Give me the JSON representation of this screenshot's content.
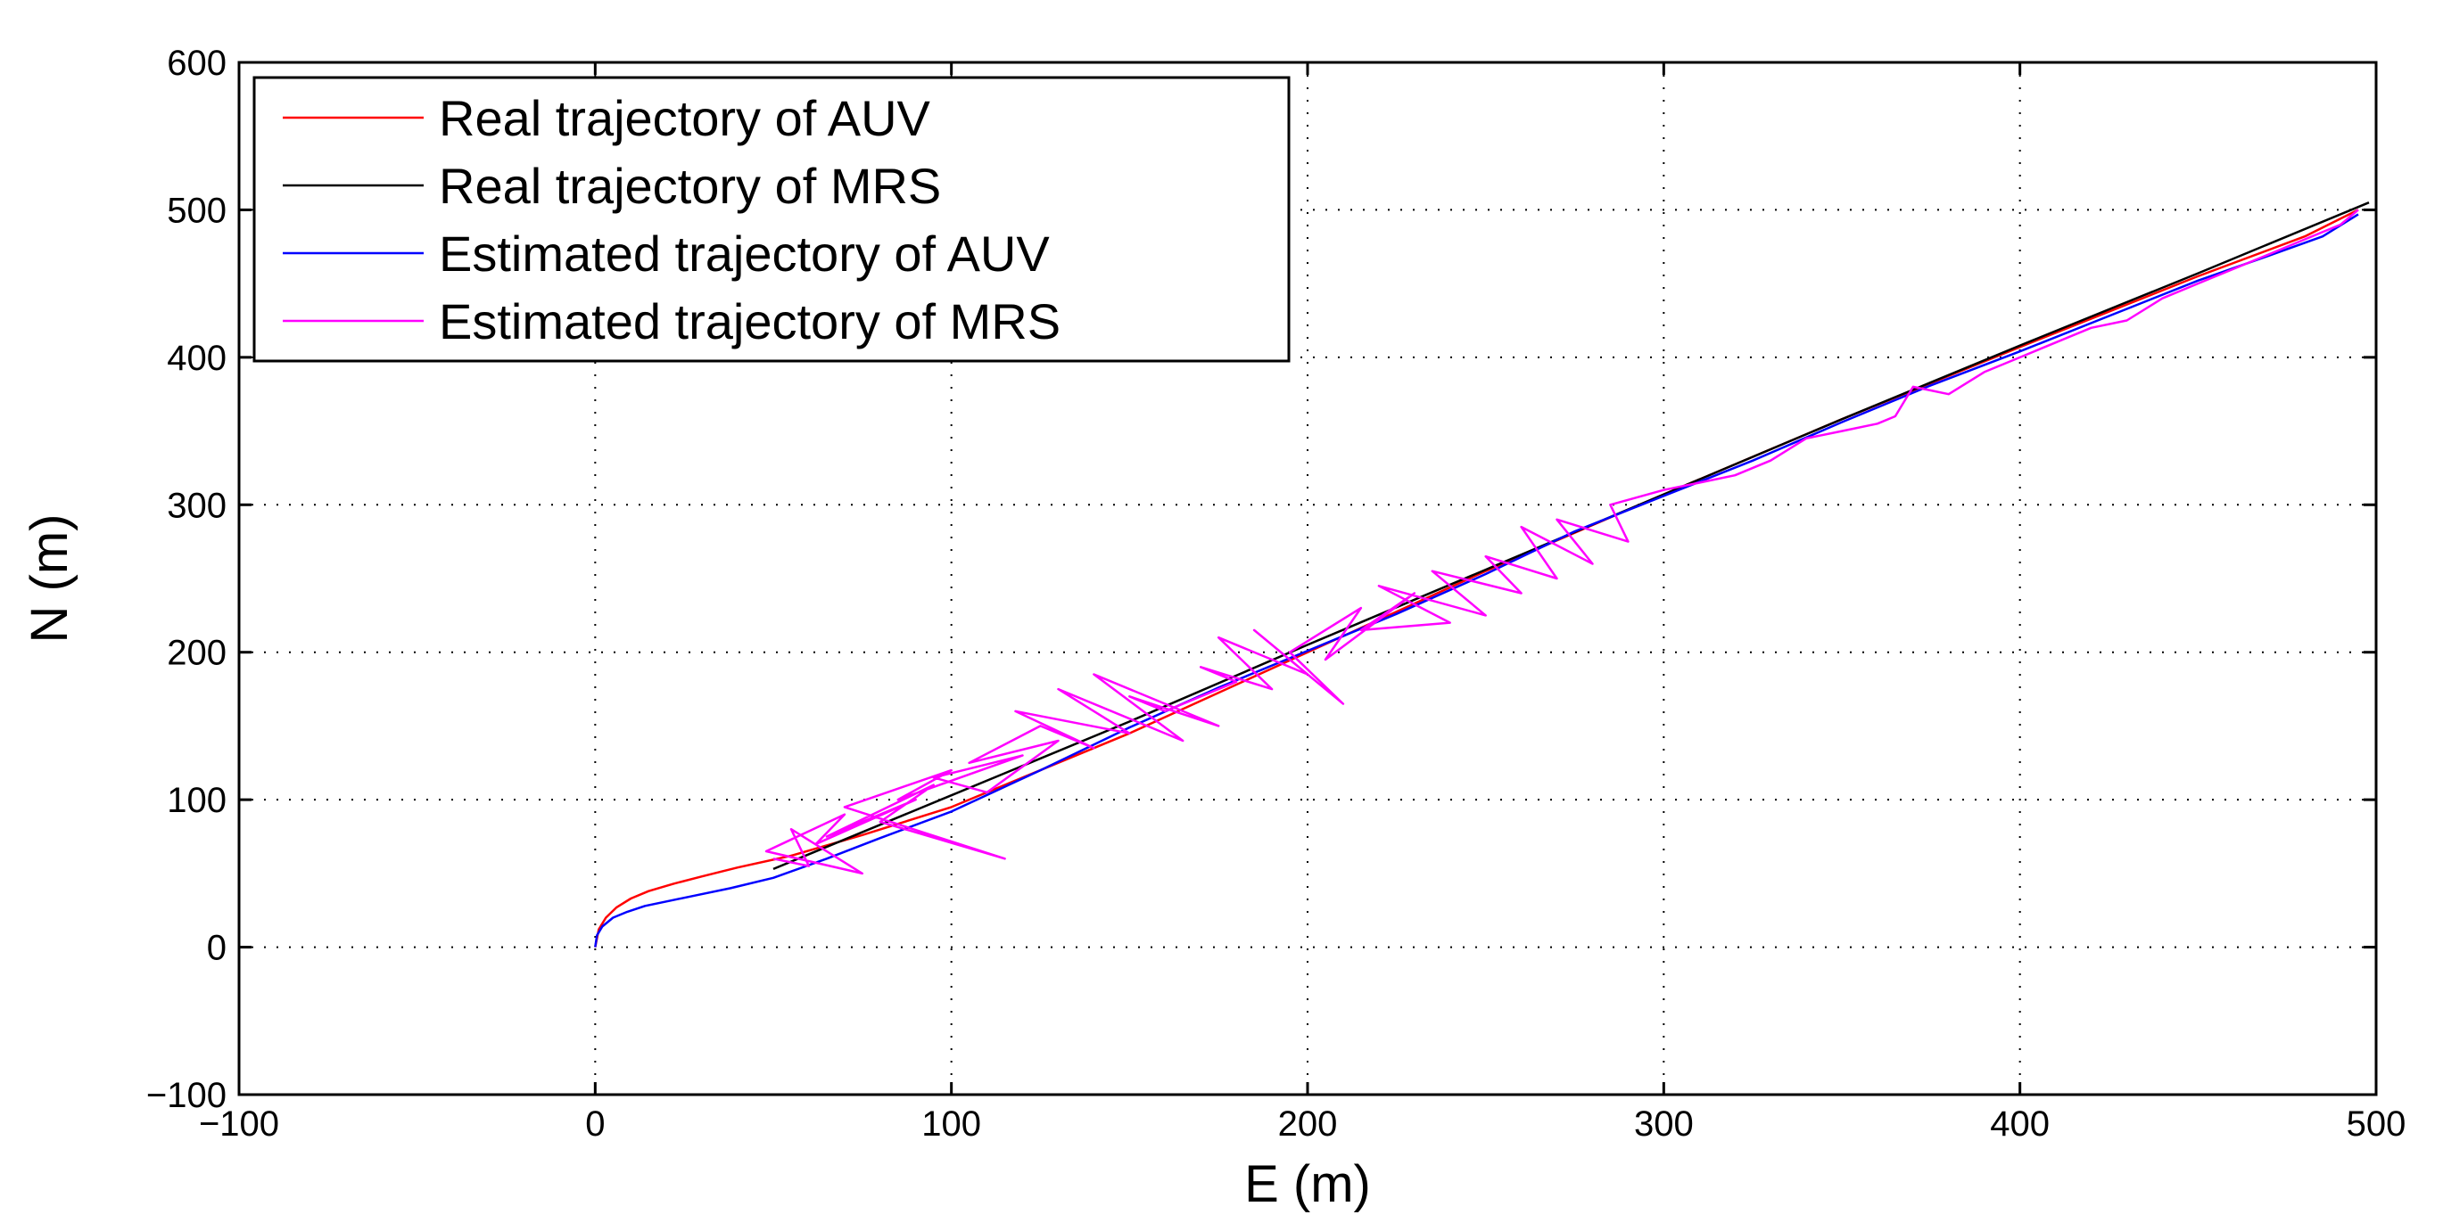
{
  "chart_data": {
    "type": "line",
    "title": "",
    "xlabel": "E (m)",
    "ylabel": "N (m)",
    "xlim": [
      -100,
      500
    ],
    "ylim": [
      -100,
      600
    ],
    "xticks": [
      -100,
      0,
      100,
      200,
      300,
      400,
      500
    ],
    "yticks": [
      -100,
      0,
      100,
      200,
      300,
      400,
      500,
      600
    ],
    "xtick_labels": [
      "−100",
      "0",
      "100",
      "200",
      "300",
      "400",
      "500"
    ],
    "ytick_labels": [
      "−100",
      "0",
      "100",
      "200",
      "300",
      "400",
      "500",
      "600"
    ],
    "grid": true,
    "legend_position": "top-left",
    "series": [
      {
        "name": "Real trajectory of AUV",
        "color": "#ff0000",
        "x": [
          0,
          1,
          3,
          6,
          10,
          15,
          22,
          30,
          40,
          55,
          75,
          100,
          150,
          200,
          250,
          300,
          350,
          400,
          450,
          480,
          495
        ],
        "y": [
          0,
          12,
          20,
          27,
          33,
          38,
          43,
          48,
          54,
          62,
          76,
          95,
          145,
          200,
          255,
          307,
          358,
          407,
          455,
          482,
          500
        ]
      },
      {
        "name": "Real trajectory of MRS",
        "color": "#000000",
        "x": [
          50,
          100,
          150,
          200,
          250,
          300,
          350,
          400,
          450,
          498
        ],
        "y": [
          53,
          103,
          153,
          205,
          256,
          307,
          358,
          408,
          457,
          505
        ]
      },
      {
        "name": "Estimated trajectory of AUV",
        "color": "#0000ff",
        "x": [
          0,
          0.5,
          2,
          5,
          9,
          14,
          20,
          28,
          38,
          50,
          65,
          80,
          100,
          125,
          150,
          175,
          200,
          225,
          250,
          275,
          300,
          325,
          350,
          375,
          400,
          425,
          450,
          470,
          485,
          495
        ],
        "y": [
          0,
          8,
          14,
          20,
          24,
          28,
          31,
          35,
          40,
          47,
          60,
          74,
          92,
          120,
          149,
          176,
          201,
          226,
          253,
          282,
          306,
          330,
          356,
          381,
          404,
          428,
          452,
          469,
          482,
          497
        ]
      },
      {
        "name": "Estimated trajectory of MRS",
        "color": "#ff00ff",
        "x": [
          50,
          60,
          55,
          75,
          48,
          70,
          62,
          90,
          65,
          95,
          80,
          115,
          70,
          100,
          85,
          120,
          95,
          110,
          130,
          105,
          125,
          140,
          118,
          150,
          130,
          165,
          140,
          175,
          150,
          160,
          180,
          170,
          190,
          175,
          200,
          185,
          210,
          195,
          215,
          205,
          230,
          215,
          240,
          220,
          250,
          235,
          260,
          250,
          270,
          260,
          280,
          270,
          290,
          285,
          300,
          310,
          320,
          330,
          340,
          350,
          360,
          365,
          370,
          380,
          390,
          400,
          410,
          420,
          430,
          440,
          450,
          460,
          470,
          480,
          490,
          495
        ],
        "y": [
          60,
          55,
          80,
          50,
          65,
          90,
          70,
          100,
          75,
          110,
          85,
          60,
          95,
          120,
          100,
          130,
          115,
          105,
          140,
          125,
          150,
          135,
          160,
          145,
          175,
          140,
          185,
          150,
          170,
          160,
          180,
          190,
          175,
          210,
          185,
          215,
          165,
          200,
          230,
          195,
          240,
          215,
          220,
          245,
          225,
          255,
          240,
          265,
          250,
          285,
          260,
          290,
          275,
          300,
          310,
          315,
          320,
          330,
          345,
          350,
          355,
          360,
          380,
          375,
          390,
          400,
          410,
          420,
          425,
          440,
          450,
          460,
          470,
          480,
          490,
          500
        ]
      }
    ]
  }
}
